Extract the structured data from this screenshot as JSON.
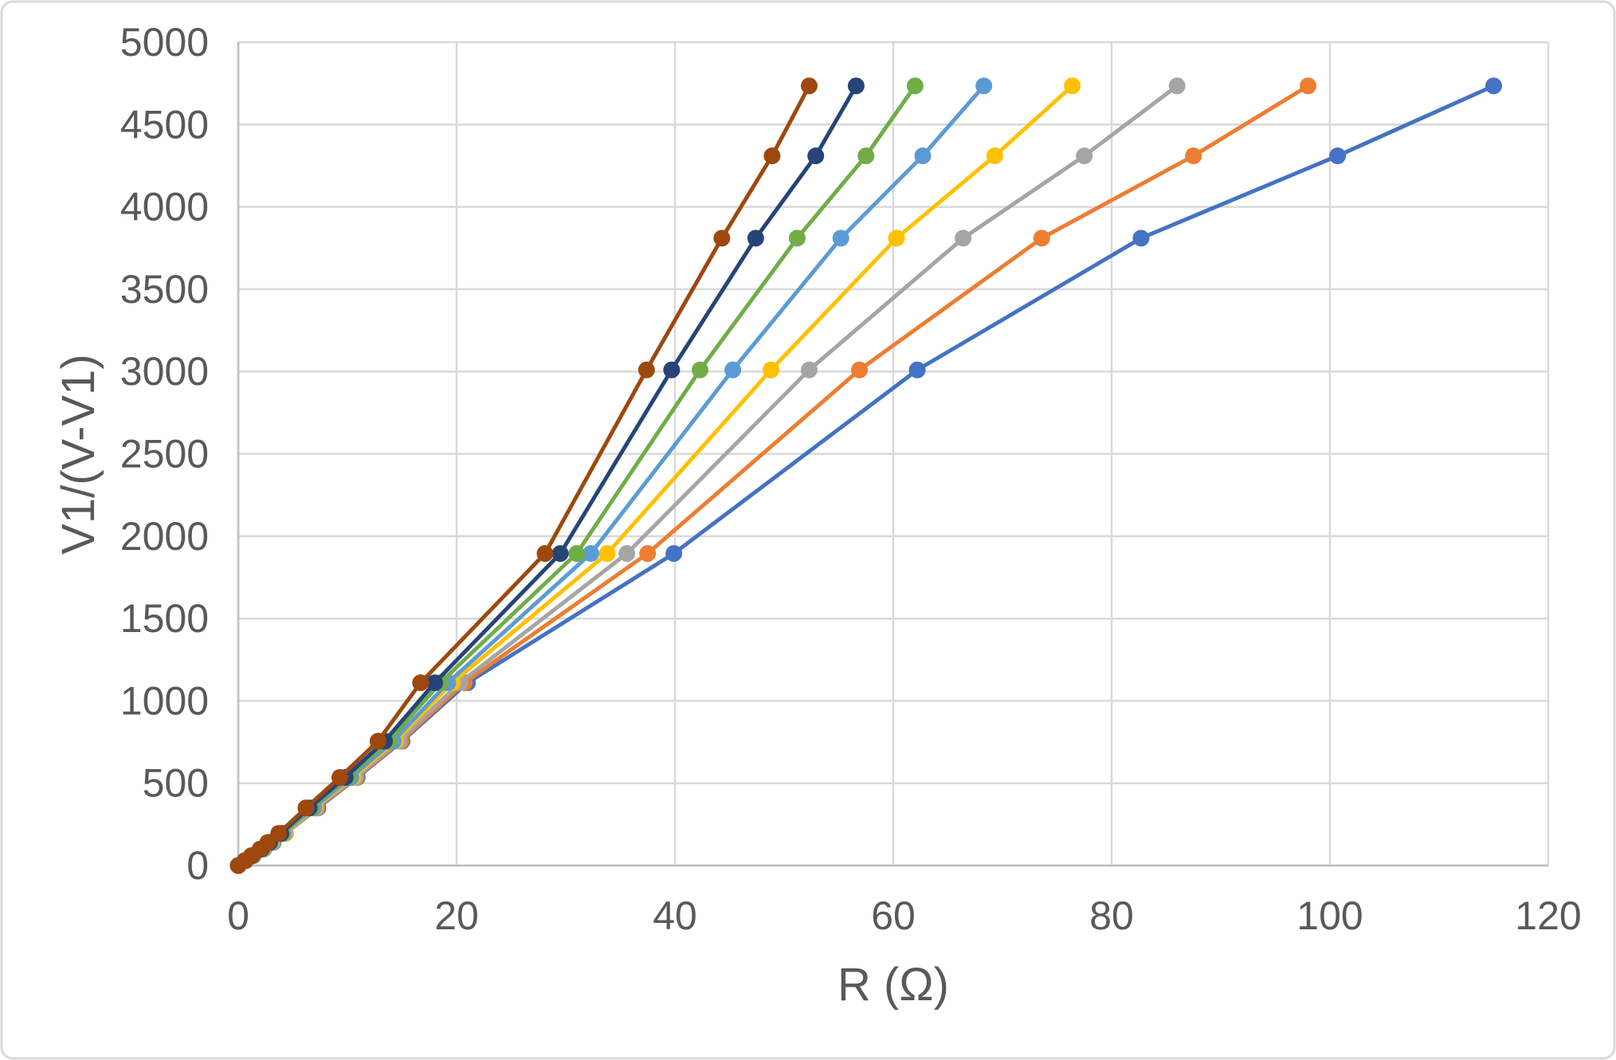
{
  "chart": {
    "background": "#FFFFFF",
    "border_color": "#D9D9D9",
    "gridline_color": "#D9D9D9",
    "axis_line_color": "#BFBFBF",
    "text_color": "#595959",
    "title": "",
    "legend": "none"
  },
  "chart_data": {
    "type": "line",
    "subtype": "scatter-with-straight-lines-and-markers",
    "title": "",
    "xlabel": "R (Ω)",
    "ylabel": "V1/(V-V1)",
    "xlim": [
      0,
      120
    ],
    "ylim": [
      0,
      5000
    ],
    "x_ticks": [
      0,
      20,
      40,
      60,
      80,
      100,
      120
    ],
    "y_ticks": [
      0,
      500,
      1000,
      1500,
      2000,
      2500,
      3000,
      3500,
      4000,
      4500,
      5000
    ],
    "grid": true,
    "legend_position": "none",
    "marker": "circle",
    "draw_order": "first series listed is drawn at the bottom, last on top",
    "common_y": [
      0,
      30,
      60,
      100,
      140,
      195,
      350,
      535,
      755,
      1110,
      1895,
      3010,
      3810,
      4310,
      4735
    ],
    "series": [
      {
        "name": "series-blue",
        "color": "#4472C4",
        "x": [
          0,
          0.7,
          1.4,
          2.35,
          3.2,
          4.3,
          7.3,
          10.9,
          15.0,
          21.0,
          39.9,
          62.2,
          82.7,
          100.7,
          115.0
        ]
      },
      {
        "name": "series-orange",
        "color": "#ED7D31",
        "x": [
          0,
          0.7,
          1.4,
          2.3,
          3.15,
          4.3,
          7.2,
          10.8,
          14.9,
          20.7,
          37.5,
          56.9,
          73.6,
          87.5,
          98.0
        ]
      },
      {
        "name": "series-gray",
        "color": "#A5A5A5",
        "x": [
          0,
          0.69,
          1.38,
          2.3,
          3.1,
          4.25,
          7.1,
          10.7,
          14.7,
          20.3,
          35.6,
          52.3,
          66.4,
          77.5,
          86.0
        ]
      },
      {
        "name": "series-gold",
        "color": "#FFC000",
        "x": [
          0,
          0.68,
          1.35,
          2.25,
          3.05,
          4.2,
          7.0,
          10.5,
          14.4,
          19.6,
          33.8,
          48.8,
          60.3,
          69.3,
          76.4
        ]
      },
      {
        "name": "series-light-blue",
        "color": "#5B9BD5",
        "x": [
          0,
          0.67,
          1.33,
          2.2,
          3.0,
          4.1,
          6.9,
          10.3,
          14.2,
          19.2,
          32.3,
          45.3,
          55.2,
          62.7,
          68.3
        ]
      },
      {
        "name": "series-green",
        "color": "#70AD47",
        "x": [
          0,
          0.65,
          1.3,
          2.15,
          2.9,
          4.0,
          6.7,
          10.0,
          13.8,
          18.5,
          31.0,
          42.3,
          51.2,
          57.5,
          62.0
        ]
      },
      {
        "name": "series-navy",
        "color": "#264478",
        "x": [
          0,
          0.63,
          1.25,
          2.1,
          2.85,
          3.9,
          6.5,
          9.8,
          13.4,
          18.0,
          29.5,
          39.7,
          47.4,
          52.9,
          56.6
        ]
      },
      {
        "name": "series-brown",
        "color": "#9E480E",
        "x": [
          0,
          0.6,
          1.2,
          2.0,
          2.7,
          3.7,
          6.2,
          9.3,
          12.8,
          16.7,
          28.1,
          37.4,
          44.3,
          48.9,
          52.3
        ]
      }
    ]
  }
}
